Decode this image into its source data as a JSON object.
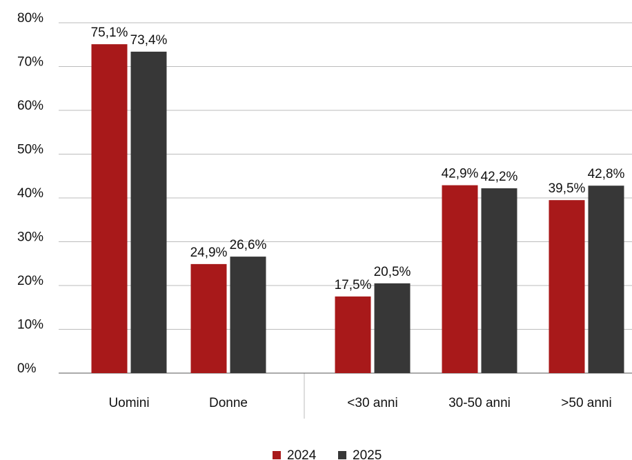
{
  "chart_data": {
    "type": "bar",
    "categories": [
      "Uomini",
      "Donne",
      "<30 anni",
      "30-50 anni",
      ">50 anni"
    ],
    "series": [
      {
        "name": "2024",
        "color": "#a8191a",
        "values": [
          75.1,
          24.9,
          17.5,
          42.9,
          39.5
        ],
        "value_labels": [
          "75,1%",
          "24,9%",
          "17,5%",
          "42,9%",
          "39,5%"
        ]
      },
      {
        "name": "2025",
        "color": "#373737",
        "values": [
          73.4,
          26.6,
          20.5,
          42.2,
          42.8
        ],
        "value_labels": [
          "73,4%",
          "26,6%",
          "20,5%",
          "42,2%",
          "42,8%"
        ]
      }
    ],
    "ylim": [
      0,
      80
    ],
    "yticks": [
      {
        "value": 0,
        "label": "0%"
      },
      {
        "value": 10,
        "label": "10%"
      },
      {
        "value": 20,
        "label": "20%"
      },
      {
        "value": 30,
        "label": "30%"
      },
      {
        "value": 40,
        "label": "40%"
      },
      {
        "value": 50,
        "label": "50%"
      },
      {
        "value": 60,
        "label": "60%"
      },
      {
        "value": 70,
        "label": "70%"
      },
      {
        "value": 80,
        "label": "80%"
      }
    ],
    "grid": true,
    "legend": "bottom"
  }
}
